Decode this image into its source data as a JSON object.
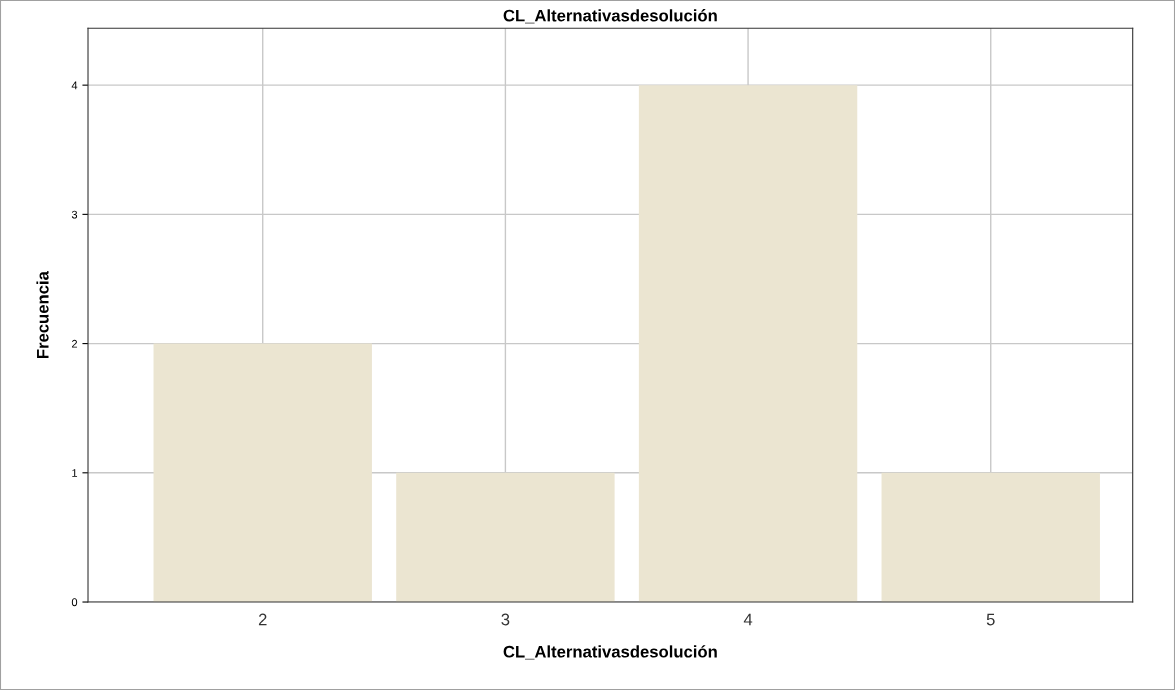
{
  "chart_data": {
    "type": "bar",
    "title": "CL_Alternativasdesolución",
    "xlabel": "CL_Alternativasdesolución",
    "ylabel": "Frecuencia",
    "categories": [
      "2",
      "3",
      "4",
      "5"
    ],
    "values": [
      2,
      1,
      4,
      1
    ],
    "color": "#ebe5d1",
    "ylim": [
      0,
      4.44
    ],
    "yticks": [
      0,
      1,
      2,
      3,
      4
    ],
    "grid": true,
    "legend": false
  }
}
